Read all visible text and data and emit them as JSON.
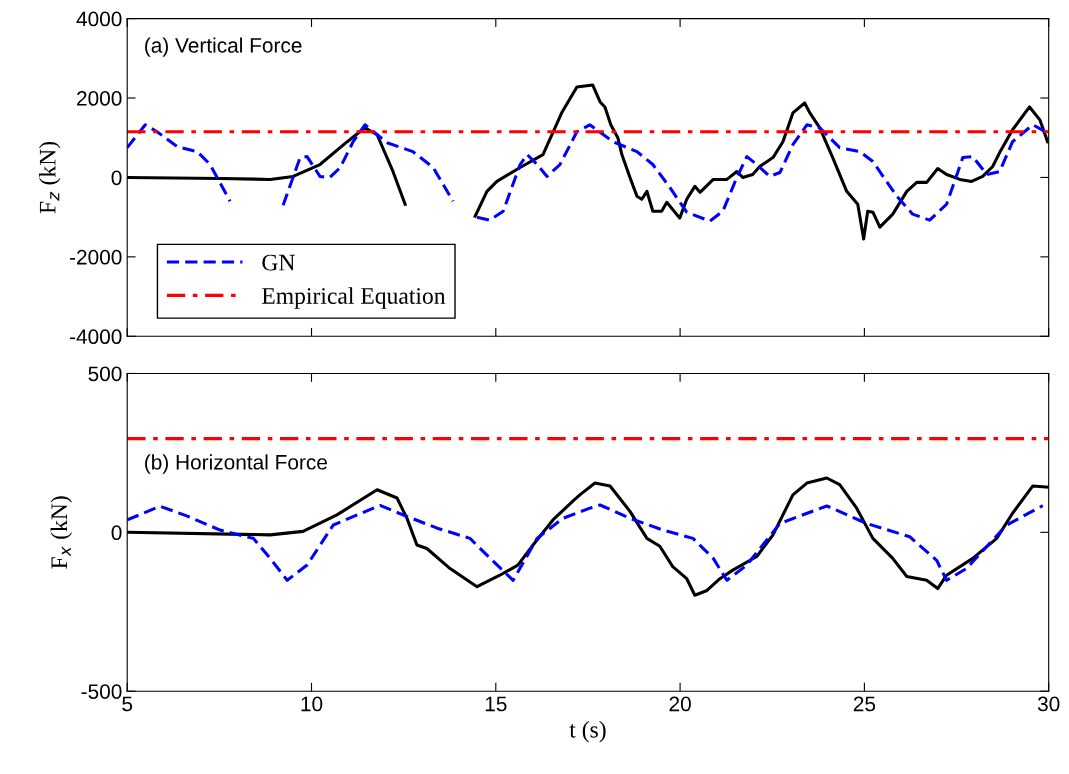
{
  "chart_data": [
    {
      "type": "line",
      "xlim": [
        5,
        30
      ],
      "xticks": [
        5,
        10,
        15,
        20,
        25,
        30
      ],
      "ylim": [
        -4000,
        4000
      ],
      "yticks": [
        -4000,
        -2000,
        0,
        2000,
        4000
      ],
      "ylabel": "F$_{z}$ (kN)",
      "tick_labels": "y",
      "grid": false,
      "legend": "bottom left",
      "annotations": [
        "(a) Vertical Force"
      ],
      "ref_lines": [
        {
          "axis": "y",
          "value": 1150,
          "label": "Empirical Equation",
          "color": "#ff0000",
          "line_style": "dashdot"
        }
      ],
      "series": [
        {
          "color": "#000000",
          "line_style": "solid",
          "x": [
            5,
            7.52,
            8.88,
            9.5,
            10.23,
            10.97,
            11.45,
            11.78,
            12.21,
            12.54,
            13.5,
            14.44,
            14.76,
            15.03,
            15.66,
            16.28,
            16.8,
            17.2,
            17.63,
            17.83,
            17.96,
            18.12,
            18.31,
            18.42,
            18.64,
            18.83,
            18.96,
            19.1,
            19.26,
            19.5,
            19.64,
            19.99,
            20.18,
            20.4,
            20.54,
            20.9,
            21.27,
            21.54,
            21.7,
            21.97,
            22.16,
            22.52,
            22.79,
            23.06,
            23.38,
            23.52,
            23.79,
            24.14,
            24.52,
            24.82,
            24.98,
            25.09,
            25.23,
            25.42,
            25.77,
            26.15,
            26.42,
            26.69,
            26.99,
            27.23,
            27.59,
            27.91,
            28.21,
            28.48,
            28.67,
            29.02,
            29.48,
            29.76,
            29.97
          ],
          "values": [
            0,
            -25,
            -50,
            25,
            325,
            900,
            1250,
            1075,
            150,
            -675,
            null,
            -975,
            -350,
            -100,
            250,
            575,
            1650,
            2275,
            2325,
            1900,
            1775,
            1325,
            1000,
            575,
            0,
            -475,
            -550,
            -350,
            -850,
            -850,
            -625,
            -1025,
            -550,
            -225,
            -375,
            -50,
            -50,
            150,
            0,
            75,
            275,
            500,
            900,
            1625,
            1875,
            1625,
            1250,
            500,
            -350,
            -675,
            -1550,
            -850,
            -875,
            -1250,
            -925,
            -350,
            -125,
            -125,
            225,
            75,
            -50,
            -100,
            25,
            275,
            625,
            1200,
            1775,
            1450,
            900
          ]
        },
        {
          "name": "GN",
          "color": "#0000ff",
          "line_style": "dashed",
          "x": [
            5,
            5.49,
            5.81,
            6.36,
            6.9,
            7.25,
            7.79,
            8.5,
            9.23,
            9.69,
            9.88,
            10.23,
            10.5,
            10.78,
            11.13,
            11.45,
            12.05,
            12.75,
            13.3,
            13.84,
            14.2,
            14.49,
            14.84,
            15.2,
            15.66,
            15.85,
            16.12,
            16.39,
            16.74,
            17.2,
            17.55,
            17.74,
            18.18,
            18.83,
            19.26,
            19.72,
            20.18,
            20.81,
            21.16,
            21.54,
            21.81,
            22.08,
            22.43,
            22.71,
            23.06,
            23.44,
            23.79,
            24.33,
            24.88,
            25.23,
            25.88,
            26.31,
            26.77,
            27.23,
            27.67,
            27.94,
            28.32,
            28.67,
            29.02,
            29.57,
            29.97
          ],
          "values": [
            750,
            1325,
            1150,
            775,
            650,
            325,
            -600,
            null,
            -700,
            500,
            525,
            25,
            0,
            250,
            900,
            1325,
            875,
            650,
            250,
            -600,
            null,
            -1000,
            -1075,
            -850,
            325,
            575,
            325,
            25,
            325,
            1150,
            1325,
            1200,
            900,
            650,
            325,
            -250,
            -875,
            -1100,
            -850,
            0,
            525,
            325,
            25,
            125,
            825,
            1325,
            1250,
            750,
            650,
            400,
            -475,
            -925,
            -1075,
            -675,
            500,
            525,
            75,
            150,
            900,
            1325,
            1125
          ]
        }
      ]
    },
    {
      "type": "line",
      "xlim": [
        5,
        30
      ],
      "xticks": [
        5,
        10,
        15,
        20,
        25,
        30
      ],
      "ylim": [
        -500,
        500
      ],
      "yticks": [
        -500,
        0,
        500
      ],
      "xlabel": "t (s)",
      "ylabel": "F$_{x}$ (kN)",
      "grid": false,
      "annotations": [
        "(b) Horizontal Force"
      ],
      "ref_lines": [
        {
          "axis": "y",
          "value": 295,
          "color": "#ff0000",
          "line_style": "dashdot"
        }
      ],
      "series": [
        {
          "color": "#000000",
          "line_style": "solid",
          "x": [
            5,
            8.88,
            9.77,
            10.69,
            11.78,
            12.32,
            12.59,
            12.86,
            13.13,
            13.76,
            14.49,
            15.11,
            15.6,
            16.01,
            16.55,
            17.09,
            17.28,
            17.69,
            18.1,
            18.64,
            19.1,
            19.45,
            19.8,
            20.18,
            20.4,
            20.73,
            21.08,
            21.43,
            22.08,
            22.52,
            23.06,
            23.44,
            23.98,
            24.33,
            24.79,
            25.23,
            25.77,
            26.15,
            26.69,
            26.99,
            27.23,
            27.94,
            28.59,
            29.02,
            29.57,
            29.97
          ],
          "values": [
            0,
            -8,
            3,
            55,
            134,
            108,
            44,
            -40,
            -51,
            -114,
            -171,
            -135,
            -103,
            -40,
            39,
            98,
            118,
            155,
            146,
            66,
            -19,
            -44,
            -108,
            -146,
            -198,
            -183,
            -146,
            -119,
            -76,
            -8,
            118,
            155,
            171,
            150,
            76,
            -19,
            -82,
            -139,
            -151,
            -177,
            -135,
            -82,
            -19,
            60,
            146,
            142
          ]
        },
        {
          "color": "#0000ff",
          "line_style": "dashed",
          "x": [
            5,
            5.89,
            6.63,
            7.52,
            8.42,
            8.88,
            9.34,
            9.88,
            10.59,
            11.86,
            12.48,
            13.41,
            14.3,
            14.76,
            15.47,
            16.12,
            16.82,
            17.55,
            17.83,
            18.64,
            19.54,
            20.35,
            20.9,
            21.27,
            21.81,
            22.71,
            23.98,
            25.06,
            26.23,
            26.96,
            27.23,
            27.77,
            28.86,
            29.84
          ],
          "values": [
            39,
            82,
            51,
            7,
            -19,
            -82,
            -151,
            -103,
            23,
            85,
            55,
            13,
            -19,
            -72,
            -151,
            -19,
            44,
            76,
            86,
            44,
            7,
            -19,
            -82,
            -151,
            -103,
            28,
            83,
            28,
            -14,
            -88,
            -151,
            -114,
            23,
            84
          ]
        }
      ]
    }
  ]
}
